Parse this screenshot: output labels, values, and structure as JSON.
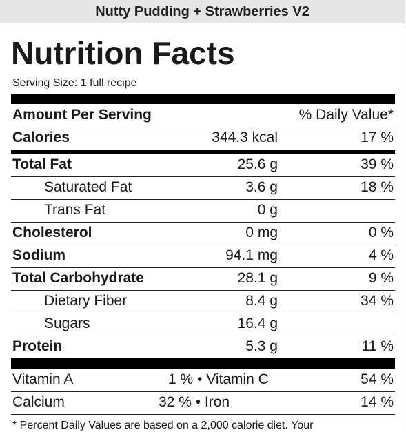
{
  "recipe_title": "Nutty Pudding + Strawberries V2",
  "heading": "Nutrition Facts",
  "serving_size": "Serving Size: 1 full recipe",
  "header_row": {
    "left": "Amount Per Serving",
    "right": "% Daily Value*"
  },
  "calories": {
    "label": "Calories",
    "amount": "344.3 kcal",
    "dv": "17 %"
  },
  "nutrients": [
    {
      "label": "Total Fat",
      "amount": "25.6 g",
      "dv": "39 %"
    },
    {
      "label": "Saturated Fat",
      "amount": "3.6 g",
      "dv": "18 %"
    },
    {
      "label": "Trans Fat",
      "amount": "0 g",
      "dv": ""
    },
    {
      "label": "Cholesterol",
      "amount": "0 mg",
      "dv": "0 %"
    },
    {
      "label": "Sodium",
      "amount": "94.1 mg",
      "dv": "4 %"
    },
    {
      "label": "Total Carbohydrate",
      "amount": "28.1 g",
      "dv": "9 %"
    },
    {
      "label": "Dietary Fiber",
      "amount": "8.4 g",
      "dv": "34 %"
    },
    {
      "label": "Sugars",
      "amount": "16.4 g",
      "dv": ""
    },
    {
      "label": "Protein",
      "amount": "5.3 g",
      "dv": "11 %"
    }
  ],
  "vitamins": [
    {
      "left_label": "Vitamin A",
      "left_value": "1 % • Vitamin C",
      "right_value": "54 %"
    },
    {
      "left_label": "Calcium",
      "left_value": "32 % • Iron",
      "right_value": "14 %"
    }
  ],
  "footnote": "* Percent Daily Values are based on a 2,000 calorie diet. Your"
}
